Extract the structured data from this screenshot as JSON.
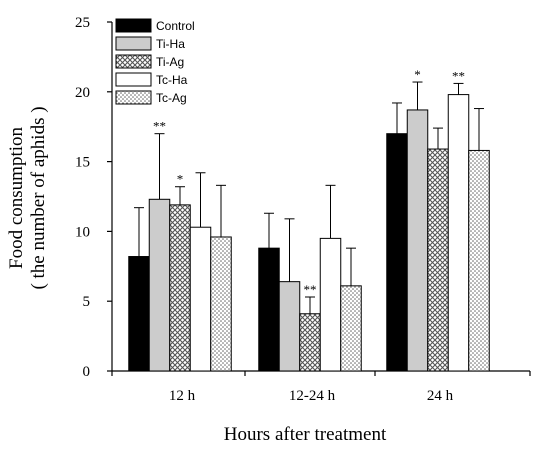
{
  "chart_data": {
    "type": "bar",
    "categories": [
      "12 h",
      "12-24 h",
      "24 h"
    ],
    "series": [
      {
        "name": "Control",
        "values": [
          8.2,
          8.8,
          17.0
        ],
        "errors": [
          3.5,
          2.5,
          2.2
        ],
        "significance": [
          "",
          "",
          ""
        ]
      },
      {
        "name": "Ti-Ha",
        "values": [
          12.3,
          6.4,
          18.7
        ],
        "errors": [
          4.7,
          4.5,
          2.0
        ],
        "significance": [
          "**",
          "",
          "*"
        ]
      },
      {
        "name": "Ti-Ag",
        "values": [
          11.9,
          4.1,
          15.9
        ],
        "errors": [
          1.3,
          1.2,
          1.5
        ],
        "significance": [
          "*",
          "**",
          ""
        ]
      },
      {
        "name": "Tc-Ha",
        "values": [
          10.3,
          9.5,
          19.8
        ],
        "errors": [
          3.9,
          3.8,
          0.8
        ],
        "significance": [
          "",
          "",
          "**"
        ]
      },
      {
        "name": "Tc-Ag",
        "values": [
          9.6,
          6.1,
          15.8
        ],
        "errors": [
          3.7,
          2.7,
          3.0
        ],
        "significance": [
          "",
          "",
          ""
        ]
      }
    ],
    "xlabel": "Hours after treatment",
    "ylabel_line1": "Food consumption",
    "ylabel_line2": "( the number of aphids )",
    "ylim": [
      0,
      25
    ],
    "yticks": [
      "0",
      "5",
      "10",
      "15",
      "20",
      "25"
    ],
    "legend_position": "top-left",
    "grid": false,
    "fills": {
      "Control": "#000000",
      "Ti-Ha": "#cccccc",
      "Ti-Ag": "crosshatch",
      "Tc-Ha": "#ffffff",
      "Tc-Ag": "dots"
    }
  }
}
